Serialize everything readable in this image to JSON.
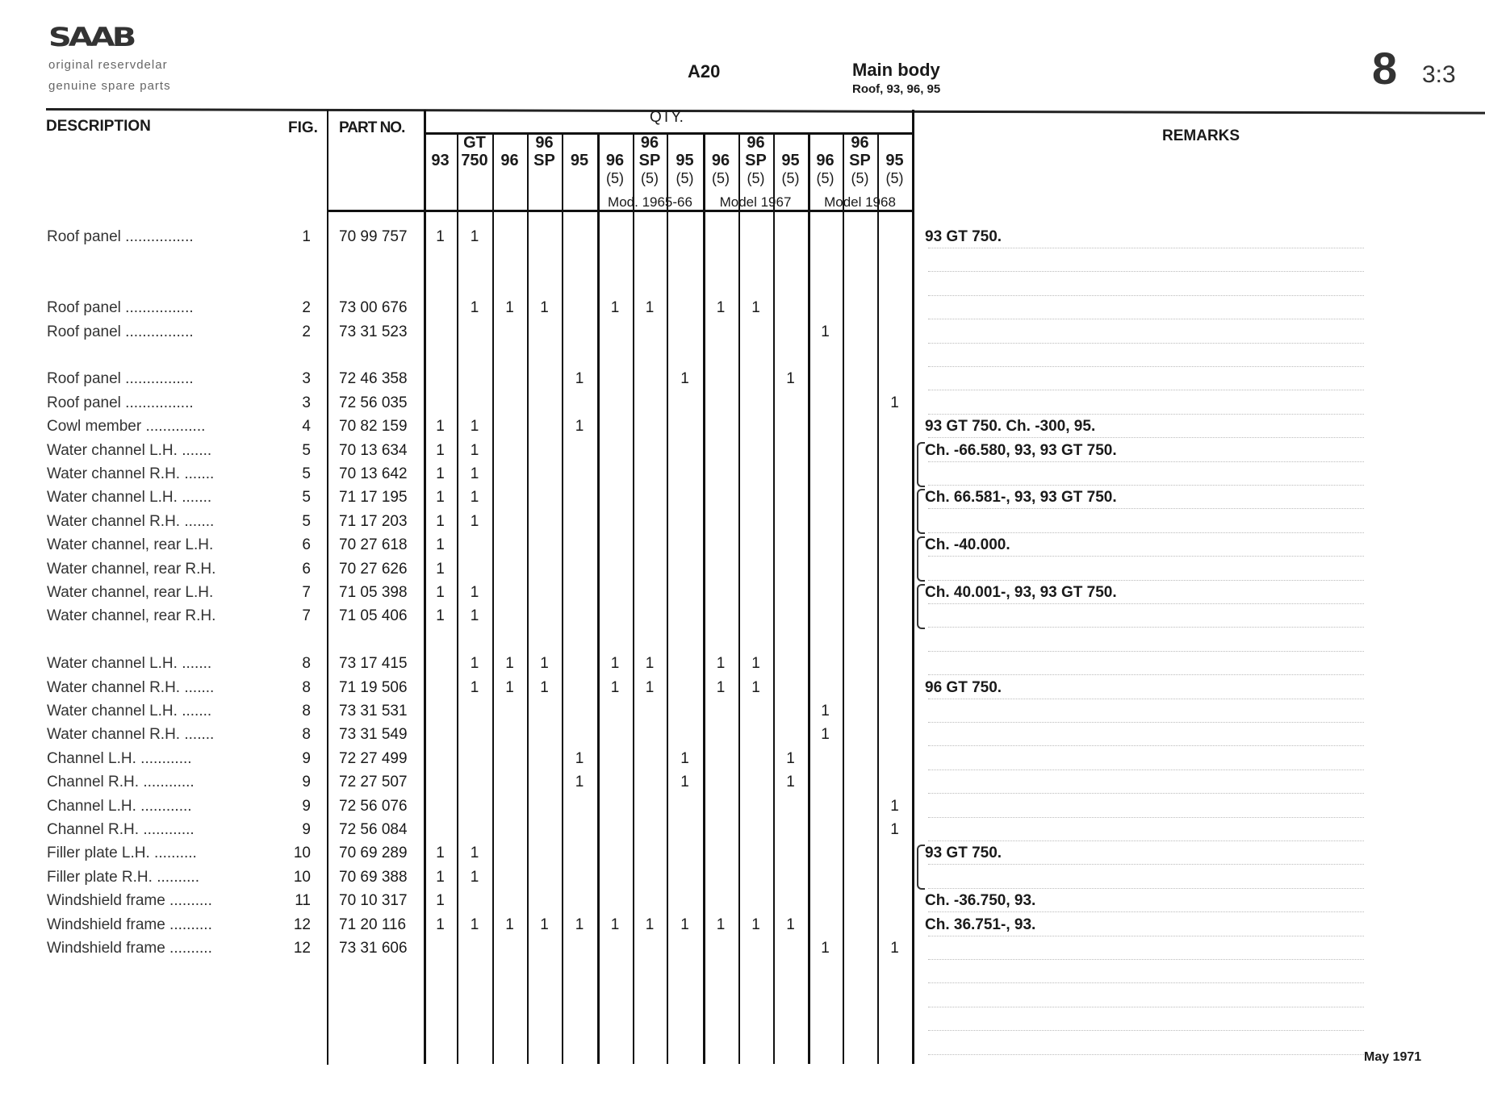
{
  "header": {
    "logo": "SAAB",
    "subtitle_sv": "original reservdelar",
    "subtitle_en": "genuine spare parts",
    "group_code": "A20",
    "title": "Main body",
    "subtitle": "Roof, 93, 96, 95",
    "section": "8",
    "page": "3:3"
  },
  "columns": {
    "description": "DESCRIPTION",
    "fig": "FIG.",
    "part_no": "PART NO.",
    "qty": "QTY.",
    "remarks": "REMARKS",
    "qty_columns": [
      {
        "top": "",
        "main": "93",
        "sub": ""
      },
      {
        "top": "GT",
        "main": "750",
        "sub": ""
      },
      {
        "top": "",
        "main": "96",
        "sub": ""
      },
      {
        "top": "96",
        "main": "SP",
        "sub": ""
      },
      {
        "top": "",
        "main": "95",
        "sub": ""
      },
      {
        "top": "",
        "main": "96",
        "sub": "(5)"
      },
      {
        "top": "96",
        "main": "SP",
        "sub": "(5)"
      },
      {
        "top": "",
        "main": "95",
        "sub": "(5)"
      },
      {
        "top": "",
        "main": "96",
        "sub": "(5)"
      },
      {
        "top": "96",
        "main": "SP",
        "sub": "(5)"
      },
      {
        "top": "",
        "main": "95",
        "sub": "(5)"
      },
      {
        "top": "",
        "main": "96",
        "sub": "(5)"
      },
      {
        "top": "96",
        "main": "SP",
        "sub": "(5)"
      },
      {
        "top": "",
        "main": "95",
        "sub": "(5)"
      }
    ],
    "model_groups": [
      "Mod. 1965-66",
      "Model 1967",
      "Model 1968"
    ]
  },
  "rows": [
    {
      "slot": 0,
      "description": "Roof panel ................",
      "fig": "1",
      "part_no": "70 99 757",
      "qty": [
        "1",
        "1",
        "",
        "",
        "",
        "",
        "",
        "",
        "",
        "",
        "",
        "",
        "",
        ""
      ]
    },
    {
      "slot": 3,
      "description": "Roof panel ................",
      "fig": "2",
      "part_no": "73 00 676",
      "qty": [
        "",
        "1",
        "1",
        "1",
        "",
        "1",
        "1",
        "",
        "1",
        "1",
        "",
        "",
        "",
        ""
      ]
    },
    {
      "slot": 4,
      "description": "Roof panel ................",
      "fig": "2",
      "part_no": "73 31 523",
      "qty": [
        "",
        "",
        "",
        "",
        "",
        "",
        "",
        "",
        "",
        "",
        "",
        "1",
        "",
        ""
      ]
    },
    {
      "slot": 6,
      "description": "Roof panel ................",
      "fig": "3",
      "part_no": "72 46 358",
      "qty": [
        "",
        "",
        "",
        "",
        "1",
        "",
        "",
        "1",
        "",
        "",
        "1",
        "",
        "",
        ""
      ]
    },
    {
      "slot": 7,
      "description": "Roof panel ................",
      "fig": "3",
      "part_no": "72 56 035",
      "qty": [
        "",
        "",
        "",
        "",
        "",
        "",
        "",
        "",
        "",
        "",
        "",
        "",
        "",
        "1"
      ]
    },
    {
      "slot": 8,
      "description": "Cowl member ..............",
      "fig": "4",
      "part_no": "70 82 159",
      "qty": [
        "1",
        "1",
        "",
        "",
        "1",
        "",
        "",
        "",
        "",
        "",
        "",
        "",
        "",
        ""
      ]
    },
    {
      "slot": 9,
      "description": "Water channel L.H. .......",
      "fig": "5",
      "part_no": "70 13 634",
      "qty": [
        "1",
        "1",
        "",
        "",
        "",
        "",
        "",
        "",
        "",
        "",
        "",
        "",
        "",
        ""
      ]
    },
    {
      "slot": 10,
      "description": "Water channel R.H. .......",
      "fig": "5",
      "part_no": "70 13 642",
      "qty": [
        "1",
        "1",
        "",
        "",
        "",
        "",
        "",
        "",
        "",
        "",
        "",
        "",
        "",
        ""
      ]
    },
    {
      "slot": 11,
      "description": "Water channel L.H. .......",
      "fig": "5",
      "part_no": "71 17 195",
      "qty": [
        "1",
        "1",
        "",
        "",
        "",
        "",
        "",
        "",
        "",
        "",
        "",
        "",
        "",
        ""
      ]
    },
    {
      "slot": 12,
      "description": "Water channel R.H. .......",
      "fig": "5",
      "part_no": "71 17 203",
      "qty": [
        "1",
        "1",
        "",
        "",
        "",
        "",
        "",
        "",
        "",
        "",
        "",
        "",
        "",
        ""
      ]
    },
    {
      "slot": 13,
      "description": "Water channel, rear L.H.",
      "fig": "6",
      "part_no": "70 27 618",
      "qty": [
        "1",
        "",
        "",
        "",
        "",
        "",
        "",
        "",
        "",
        "",
        "",
        "",
        "",
        ""
      ]
    },
    {
      "slot": 14,
      "description": "Water channel, rear R.H.",
      "fig": "6",
      "part_no": "70 27 626",
      "qty": [
        "1",
        "",
        "",
        "",
        "",
        "",
        "",
        "",
        "",
        "",
        "",
        "",
        "",
        ""
      ]
    },
    {
      "slot": 15,
      "description": "Water channel, rear L.H.",
      "fig": "7",
      "part_no": "71 05 398",
      "qty": [
        "1",
        "1",
        "",
        "",
        "",
        "",
        "",
        "",
        "",
        "",
        "",
        "",
        "",
        ""
      ]
    },
    {
      "slot": 16,
      "description": "Water channel, rear R.H.",
      "fig": "7",
      "part_no": "71 05 406",
      "qty": [
        "1",
        "1",
        "",
        "",
        "",
        "",
        "",
        "",
        "",
        "",
        "",
        "",
        "",
        ""
      ]
    },
    {
      "slot": 18,
      "description": "Water channel L.H. .......",
      "fig": "8",
      "part_no": "73 17 415",
      "qty": [
        "",
        "1",
        "1",
        "1",
        "",
        "1",
        "1",
        "",
        "1",
        "1",
        "",
        "",
        "",
        ""
      ]
    },
    {
      "slot": 19,
      "description": "Water channel R.H. .......",
      "fig": "8",
      "part_no": "71 19 506",
      "qty": [
        "",
        "1",
        "1",
        "1",
        "",
        "1",
        "1",
        "",
        "1",
        "1",
        "",
        "",
        "",
        ""
      ]
    },
    {
      "slot": 20,
      "description": "Water channel L.H. .......",
      "fig": "8",
      "part_no": "73 31 531",
      "qty": [
        "",
        "",
        "",
        "",
        "",
        "",
        "",
        "",
        "",
        "",
        "",
        "1",
        "",
        ""
      ]
    },
    {
      "slot": 21,
      "description": "Water channel R.H. .......",
      "fig": "8",
      "part_no": "73 31 549",
      "qty": [
        "",
        "",
        "",
        "",
        "",
        "",
        "",
        "",
        "",
        "",
        "",
        "1",
        "",
        ""
      ]
    },
    {
      "slot": 22,
      "description": "Channel L.H. ............",
      "fig": "9",
      "part_no": "72 27 499",
      "qty": [
        "",
        "",
        "",
        "",
        "1",
        "",
        "",
        "1",
        "",
        "",
        "1",
        "",
        "",
        ""
      ]
    },
    {
      "slot": 23,
      "description": "Channel R.H. ............",
      "fig": "9",
      "part_no": "72 27 507",
      "qty": [
        "",
        "",
        "",
        "",
        "1",
        "",
        "",
        "1",
        "",
        "",
        "1",
        "",
        "",
        ""
      ]
    },
    {
      "slot": 24,
      "description": "Channel L.H. ............",
      "fig": "9",
      "part_no": "72 56 076",
      "qty": [
        "",
        "",
        "",
        "",
        "",
        "",
        "",
        "",
        "",
        "",
        "",
        "",
        "",
        "1"
      ]
    },
    {
      "slot": 25,
      "description": "Channel R.H. ............",
      "fig": "9",
      "part_no": "72 56 084",
      "qty": [
        "",
        "",
        "",
        "",
        "",
        "",
        "",
        "",
        "",
        "",
        "",
        "",
        "",
        "1"
      ]
    },
    {
      "slot": 26,
      "description": "Filler plate L.H. ..........",
      "fig": "10",
      "part_no": "70 69 289",
      "qty": [
        "1",
        "1",
        "",
        "",
        "",
        "",
        "",
        "",
        "",
        "",
        "",
        "",
        "",
        ""
      ]
    },
    {
      "slot": 27,
      "description": "Filler plate R.H. ..........",
      "fig": "10",
      "part_no": "70 69 388",
      "qty": [
        "1",
        "1",
        "",
        "",
        "",
        "",
        "",
        "",
        "",
        "",
        "",
        "",
        "",
        ""
      ]
    },
    {
      "slot": 28,
      "description": "Windshield frame ..........",
      "fig": "11",
      "part_no": "70 10 317",
      "qty": [
        "1",
        "",
        "",
        "",
        "",
        "",
        "",
        "",
        "",
        "",
        "",
        "",
        "",
        ""
      ]
    },
    {
      "slot": 29,
      "description": "Windshield frame ..........",
      "fig": "12",
      "part_no": "71 20 116",
      "qty": [
        "1",
        "1",
        "1",
        "1",
        "1",
        "1",
        "1",
        "1",
        "1",
        "1",
        "1",
        "",
        "",
        ""
      ]
    },
    {
      "slot": 30,
      "description": "Windshield frame ..........",
      "fig": "12",
      "part_no": "73 31 606",
      "qty": [
        "",
        "",
        "",
        "",
        "",
        "",
        "",
        "",
        "",
        "",
        "",
        "1",
        "",
        "1"
      ]
    }
  ],
  "remarks": [
    {
      "slot": 0,
      "text": "93 GT 750.",
      "brace": false
    },
    {
      "slot": 8,
      "text": "93 GT 750.  Ch. -300, 95.",
      "brace": false
    },
    {
      "slot": 9,
      "text": "Ch. -66.580, 93, 93 GT 750.",
      "brace": true
    },
    {
      "slot": 11,
      "text": "Ch. 66.581-, 93, 93 GT 750.",
      "brace": true
    },
    {
      "slot": 13,
      "text": "Ch. -40.000.",
      "brace": true
    },
    {
      "slot": 15,
      "text": "Ch. 40.001-, 93, 93 GT 750.",
      "brace": true
    },
    {
      "slot": 19,
      "text": "96 GT 750.",
      "brace": false
    },
    {
      "slot": 26,
      "text": "93 GT 750.",
      "brace": true
    },
    {
      "slot": 28,
      "text": "Ch. -36.750, 93.",
      "brace": false
    },
    {
      "slot": 29,
      "text": "Ch. 36.751-, 93.",
      "brace": false
    }
  ],
  "footer": {
    "date": "May 1971"
  }
}
